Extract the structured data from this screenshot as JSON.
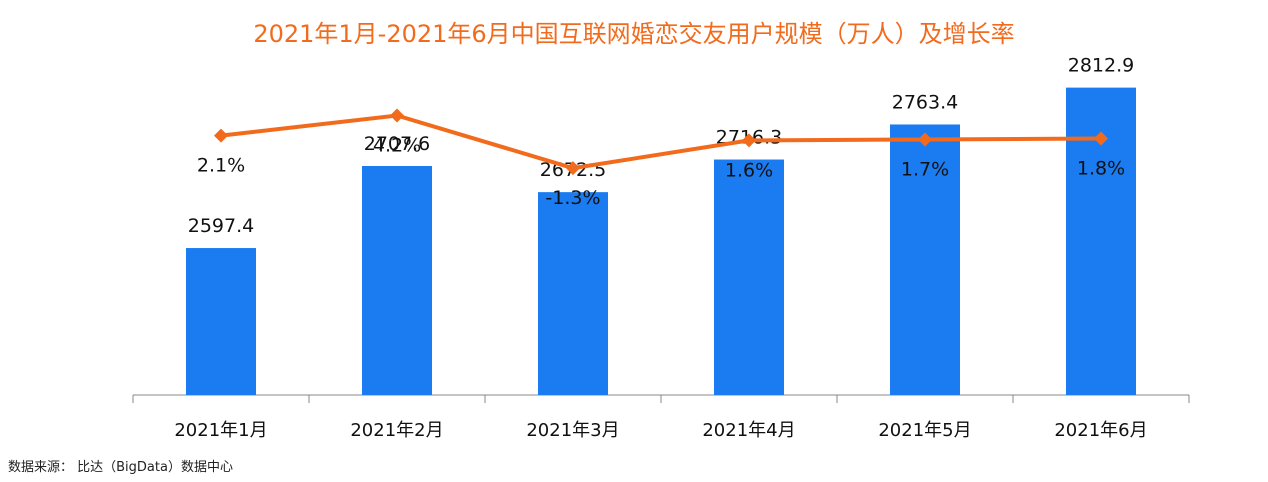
{
  "title": "2021年1月-2021年6月中国互联网婚恋交友用户规模（万人）及增长率",
  "source": "数据来源： 比达（BigData）数据中心",
  "colors": {
    "bar": "#1A7CF0",
    "line": "#F26B1D",
    "title": "#F26B1D"
  },
  "chart_data": {
    "type": "bar",
    "title": "2021年1月-2021年6月中国互联网婚恋交友用户规模（万人）及增长率",
    "categories": [
      "2021年1月",
      "2021年2月",
      "2021年3月",
      "2021年4月",
      "2021年5月",
      "2021年6月"
    ],
    "series": [
      {
        "type": "bar",
        "values": [
          2597.4,
          2707.6,
          2672.5,
          2716.3,
          2763.4,
          2812.9
        ],
        "labels": [
          "2597.4",
          "2707.6",
          "2672.5",
          "2716.3",
          "2763.4",
          "2812.9"
        ]
      },
      {
        "type": "line",
        "values": [
          2.1,
          4.2,
          -1.3,
          1.6,
          1.7,
          1.8
        ],
        "labels": [
          "2.1%",
          "4.2%",
          "-1.3%",
          "1.6%",
          "1.7%",
          "1.8%"
        ]
      }
    ],
    "ylim": [
      2400,
      2850
    ],
    "y2lim": [
      -25,
      10
    ],
    "grid": false,
    "legend": "none"
  }
}
